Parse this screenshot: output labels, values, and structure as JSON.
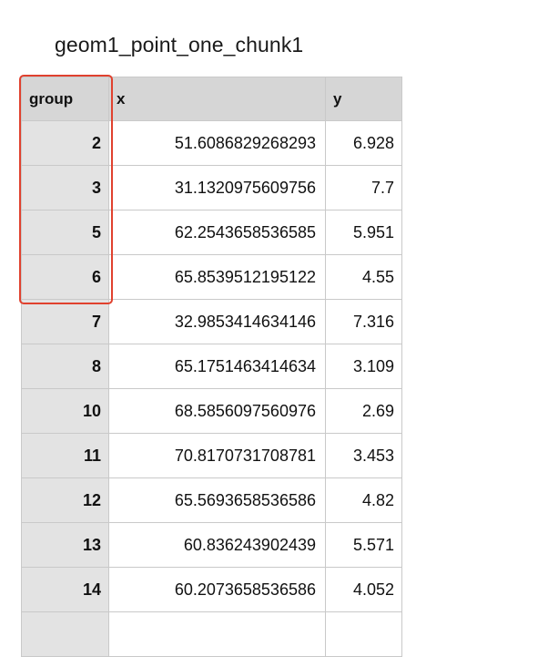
{
  "title": "geom1_point_one_chunk1",
  "columns": {
    "group": "group",
    "x": "x",
    "y": "y"
  },
  "rows": [
    {
      "group": "2",
      "x": "51.6086829268293",
      "y": "6.928"
    },
    {
      "group": "3",
      "x": "31.1320975609756",
      "y": "7.7"
    },
    {
      "group": "5",
      "x": "62.2543658536585",
      "y": "5.951"
    },
    {
      "group": "6",
      "x": "65.8539512195122",
      "y": "4.55"
    },
    {
      "group": "7",
      "x": "32.9853414634146",
      "y": "7.316"
    },
    {
      "group": "8",
      "x": "65.1751463414634",
      "y": "3.109"
    },
    {
      "group": "10",
      "x": "68.5856097560976",
      "y": "2.69"
    },
    {
      "group": "11",
      "x": "70.8170731708781",
      "y": "3.453"
    },
    {
      "group": "12",
      "x": "65.5693658536586",
      "y": "4.82"
    },
    {
      "group": "13",
      "x": "60.836243902439",
      "y": "5.571"
    },
    {
      "group": "14",
      "x": "60.2073658536586",
      "y": "4.052"
    },
    {
      "group": "",
      "x": "",
      "y": ""
    }
  ],
  "highlight_color": "#e0412e"
}
